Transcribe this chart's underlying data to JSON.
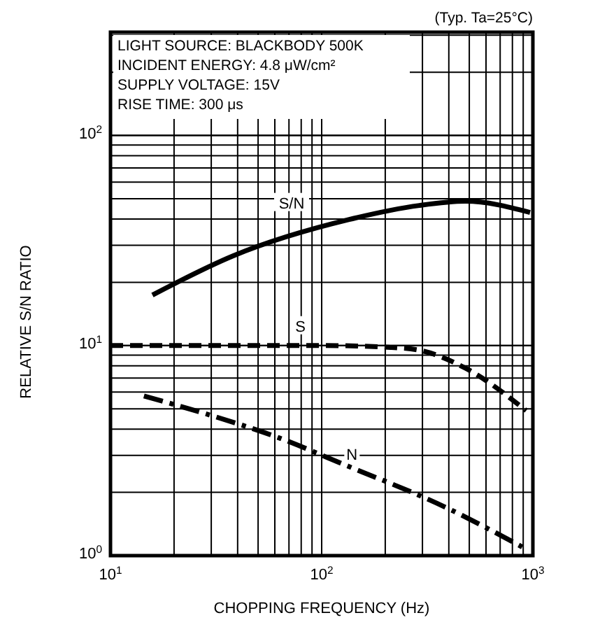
{
  "chart_data": {
    "type": "line",
    "xlabel": "CHOPPING FREQUENCY (Hz)",
    "ylabel": "RELATIVE S/N RATIO",
    "log": "xy",
    "grid": true,
    "xlim": [
      10,
      1000
    ],
    "ylim": [
      1,
      310
    ],
    "xticks": [
      {
        "value": 10,
        "label": "10$^{1}$"
      },
      {
        "value": 100,
        "label": "10$^{2}$"
      },
      {
        "value": 1000,
        "label": "10$^{3}$"
      }
    ],
    "yticks": [
      {
        "value": 1,
        "label": "10$^{0}$"
      },
      {
        "value": 10,
        "label": "10$^{1}$"
      },
      {
        "value": 100,
        "label": "10$^{2}$"
      }
    ],
    "annotations": [
      "(Typ. Ta=25°C)",
      "LIGHT SOURCE: BLACKBODY 500K",
      "INCIDENT ENERGY: 4.8 μW/cm²",
      "SUPPLY VOLTAGE: 15V",
      "RISE TIME: 300 μs"
    ],
    "series": [
      {
        "name": "S/N",
        "color": "#000000",
        "line_style": "solid",
        "x": [
          15.8,
          38,
          135,
          290,
          480,
          970
        ],
        "values": [
          17.4,
          26.7,
          39.8,
          46.4,
          48.6,
          43
        ]
      },
      {
        "name": "S",
        "color": "#000000",
        "line_style": "dashed",
        "x": [
          10,
          100,
          212,
          290,
          480,
          930
        ],
        "values": [
          10,
          10,
          9.8,
          9.5,
          7.8,
          4.9
        ]
      },
      {
        "name": "N",
        "color": "#000000",
        "line_style": "dashdot",
        "x": [
          14.4,
          31,
          63,
          128,
          390,
          890
        ],
        "values": [
          5.75,
          4.6,
          3.63,
          2.71,
          1.69,
          1.1
        ]
      }
    ]
  }
}
